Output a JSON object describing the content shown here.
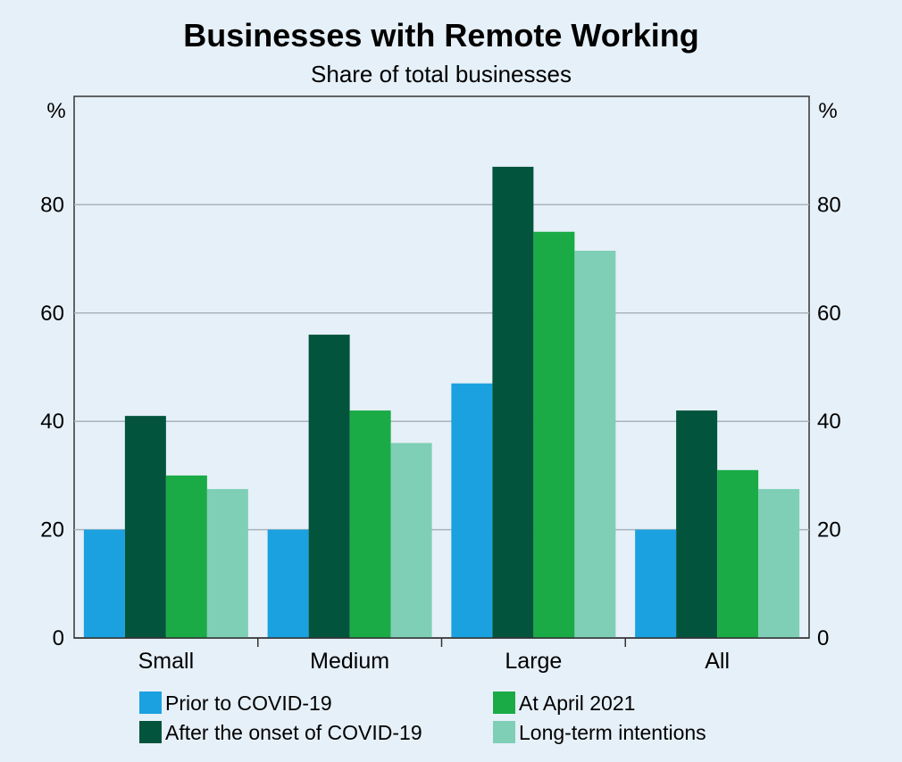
{
  "chart_data": {
    "type": "bar",
    "title": "Businesses with Remote Working",
    "subtitle": "Share of total businesses",
    "ylabel_left": "%",
    "ylabel_right": "%",
    "ylim": [
      0,
      100
    ],
    "yticks": [
      0,
      20,
      40,
      60,
      80
    ],
    "grid": true,
    "legend_position": "bottom",
    "categories": [
      "Small",
      "Medium",
      "Large",
      "All"
    ],
    "series": [
      {
        "name": "Prior to COVID-19",
        "color": "#1ba1e0",
        "values": [
          20,
          20,
          47,
          20
        ]
      },
      {
        "name": "After the onset of COVID-19",
        "color": "#03543c",
        "values": [
          41,
          56,
          87,
          42
        ]
      },
      {
        "name": "At April 2021",
        "color": "#1aab46",
        "values": [
          30,
          42,
          75,
          31
        ]
      },
      {
        "name": "Long-term intentions",
        "color": "#7ecfb6",
        "values": [
          27.5,
          36,
          71.5,
          27.5
        ]
      }
    ]
  }
}
